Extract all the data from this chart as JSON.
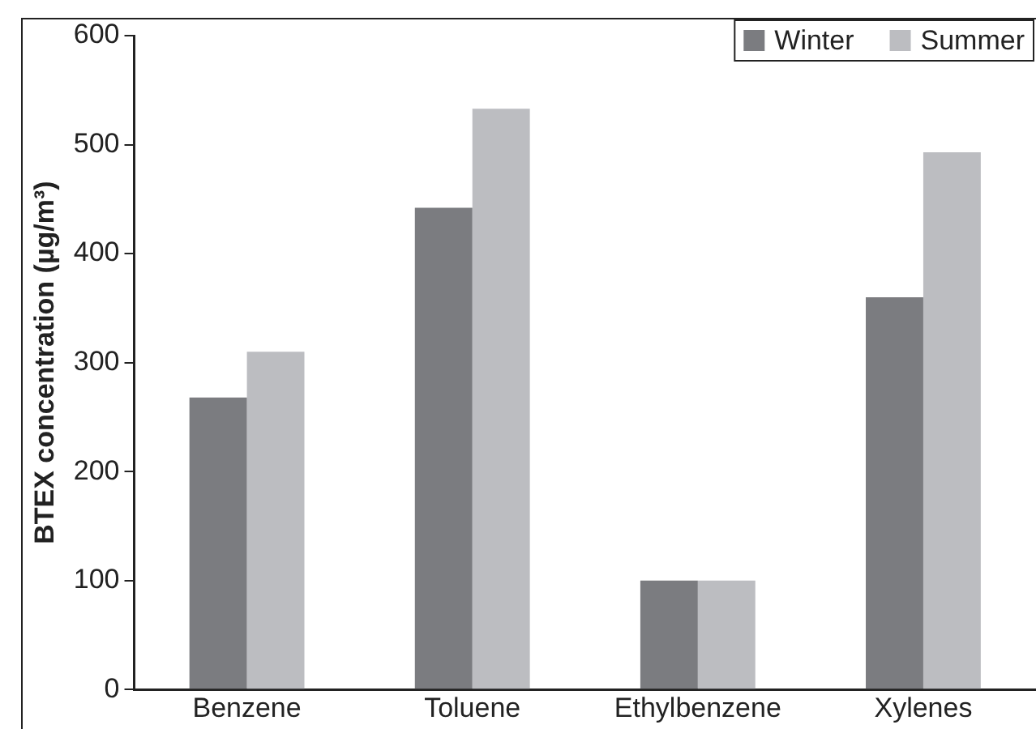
{
  "chart_data": {
    "type": "bar",
    "ylabel": "BTEX concentration (µg/m³)",
    "categories": [
      "Benzene",
      "Toluene",
      "Ethylbenzene",
      "Xylenes"
    ],
    "series": [
      {
        "name": "Winter",
        "color": "#7b7c80",
        "values": [
          268,
          442,
          100,
          360
        ]
      },
      {
        "name": "Summer",
        "color": "#bcbdc1",
        "values": [
          310,
          533,
          100,
          493
        ]
      }
    ],
    "ylim": [
      0,
      600
    ],
    "yticks": [
      0,
      100,
      200,
      300,
      400,
      500,
      600
    ],
    "grid": false,
    "legend": "top right"
  }
}
